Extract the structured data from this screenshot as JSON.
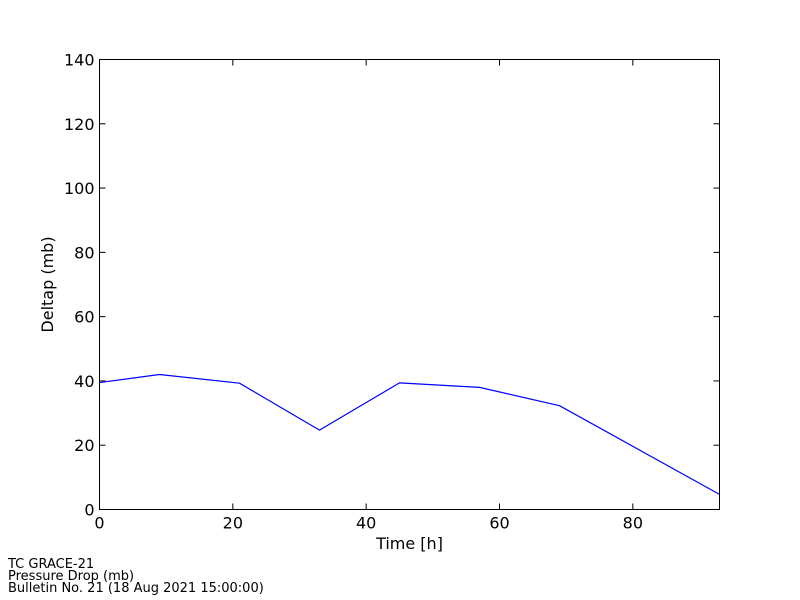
{
  "chart_data": {
    "type": "line",
    "xlabel": "Time [h]",
    "ylabel": "Deltap (mb)",
    "xlim": [
      0,
      93
    ],
    "ylim": [
      0,
      140
    ],
    "xticks": [
      0,
      20,
      40,
      60,
      80
    ],
    "yticks": [
      0,
      20,
      40,
      60,
      80,
      100,
      120,
      140
    ],
    "grid": false,
    "line_color": "#0000ff",
    "series": [
      {
        "x": [
          0,
          9,
          21,
          33,
          45,
          57,
          69,
          93
        ],
        "y": [
          39.5,
          42,
          39.3,
          24.7,
          39.4,
          38,
          32.3,
          4.7
        ]
      }
    ]
  },
  "caption": {
    "line1": "TC GRACE-21",
    "line2": "Pressure Drop (mb)",
    "line3": "Bulletin No. 21 (18 Aug 2021  15:00:00)"
  }
}
